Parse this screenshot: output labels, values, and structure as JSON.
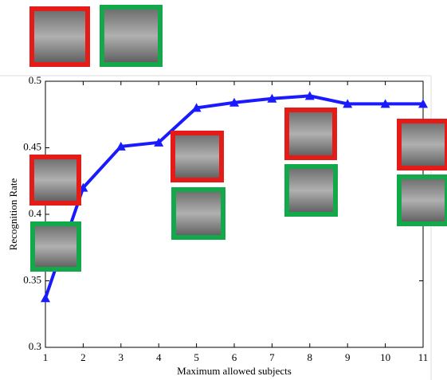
{
  "chart_data": {
    "type": "line",
    "xlabel": "Maximum allowed subjects",
    "ylabel": "Recognition Rate",
    "x": [
      1,
      2,
      3,
      4,
      5,
      6,
      7,
      8,
      9,
      10,
      11
    ],
    "values": [
      0.337,
      0.42,
      0.451,
      0.454,
      0.48,
      0.484,
      0.487,
      0.489,
      0.483,
      0.483,
      0.483
    ],
    "color": "#1a1aff",
    "xlim": [
      1,
      11
    ],
    "xticks": [
      1,
      2,
      3,
      4,
      5,
      6,
      7,
      8,
      9,
      10,
      11
    ],
    "ylim": [
      0.3,
      0.5
    ],
    "yticks": [
      0.3,
      0.35,
      0.4,
      0.45,
      0.5
    ],
    "grid": false
  }
}
